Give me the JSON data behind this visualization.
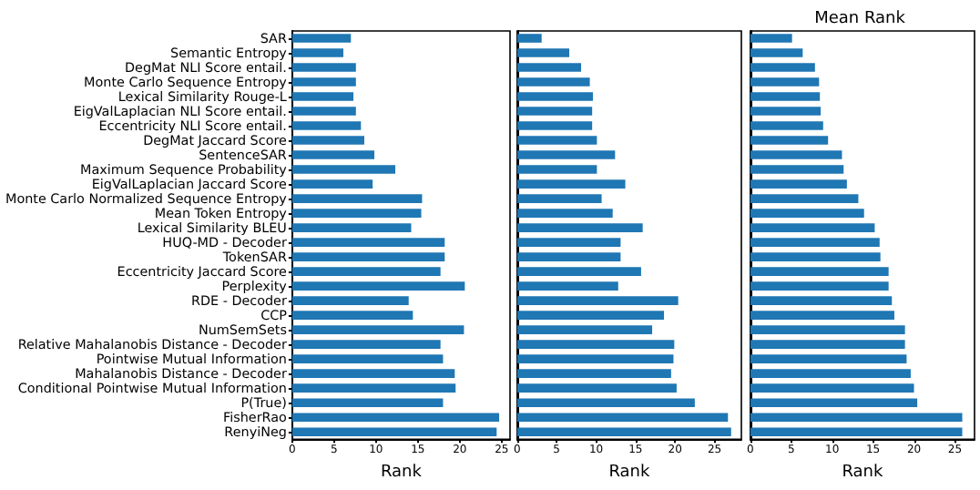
{
  "chart_data": [
    {
      "type": "bar",
      "orientation": "horizontal",
      "xlabel": "Rank",
      "categories": [
        "SAR",
        "Semantic Entropy",
        "DegMat NLI Score entail.",
        "Monte Carlo Sequence Entropy",
        "Lexical Similarity Rouge-L",
        "EigValLaplacian NLI Score entail.",
        "Eccentricity NLI Score entail.",
        "DegMat Jaccard Score",
        "SentenceSAR",
        "Maximum Sequence Probability",
        "EigValLaplacian Jaccard Score",
        "Monte Carlo Normalized Sequence Entropy",
        "Mean Token Entropy",
        "Lexical Similarity BLEU",
        "HUQ-MD - Decoder",
        "TokenSAR",
        "Eccentricity Jaccard Score",
        "Perplexity",
        "RDE - Decoder",
        "CCP",
        "NumSemSets",
        "Relative Mahalanobis Distance - Decoder",
        "Pointwise Mutual Information",
        "Mahalanobis Distance - Decoder",
        "Conditional Pointwise Mutual Information",
        "P(True)",
        "FisherRao",
        "RenyiNeg"
      ],
      "values": [
        7.0,
        6.1,
        7.6,
        7.6,
        7.3,
        7.6,
        8.2,
        8.6,
        9.8,
        12.3,
        9.6,
        15.5,
        15.4,
        14.2,
        18.2,
        18.2,
        17.7,
        20.6,
        13.9,
        14.4,
        20.5,
        17.7,
        18.0,
        19.4,
        19.5,
        18.0,
        24.7,
        24.4
      ],
      "color": "#1f77b4",
      "xlim": [
        0,
        26
      ],
      "xticks": [
        0,
        5,
        10,
        15,
        20,
        25
      ]
    },
    {
      "type": "bar",
      "orientation": "horizontal",
      "xlabel": "Rank",
      "tick_labels": "x",
      "categories": [
        null,
        null,
        null,
        null,
        null,
        null,
        null,
        null,
        null,
        null,
        null,
        null,
        null,
        null,
        null,
        null,
        null,
        null,
        null,
        null,
        null,
        null,
        null,
        null,
        null,
        null,
        null,
        null
      ],
      "values": [
        3.1,
        6.6,
        8.1,
        9.2,
        9.6,
        9.5,
        9.5,
        10.1,
        12.4,
        10.1,
        13.7,
        10.7,
        12.1,
        15.9,
        13.1,
        13.1,
        15.7,
        12.8,
        20.4,
        18.6,
        17.1,
        19.9,
        19.8,
        19.5,
        20.2,
        22.5,
        26.7,
        27.1
      ],
      "color": "#1f77b4",
      "xlim": [
        0,
        28.4
      ],
      "xticks": [
        0,
        5,
        10,
        15,
        20,
        25
      ]
    },
    {
      "type": "bar",
      "orientation": "horizontal",
      "title": "Mean Rank",
      "xlabel": "Rank",
      "tick_labels": "x",
      "categories": [
        null,
        null,
        null,
        null,
        null,
        null,
        null,
        null,
        null,
        null,
        null,
        null,
        null,
        null,
        null,
        null,
        null,
        null,
        null,
        null,
        null,
        null,
        null,
        null,
        null,
        null,
        null,
        null
      ],
      "values": [
        5.1,
        6.4,
        7.9,
        8.4,
        8.5,
        8.6,
        8.9,
        9.5,
        11.2,
        11.4,
        11.8,
        13.2,
        13.9,
        15.2,
        15.8,
        15.9,
        16.9,
        16.9,
        17.3,
        17.6,
        18.9,
        18.9,
        19.1,
        19.6,
        20.0,
        20.4,
        25.9,
        25.9
      ],
      "color": "#1f77b4",
      "xlim": [
        0,
        27.4
      ],
      "xticks": [
        0,
        5,
        10,
        15,
        20,
        25
      ]
    }
  ]
}
